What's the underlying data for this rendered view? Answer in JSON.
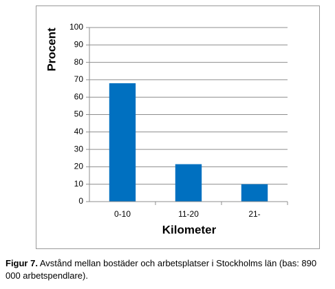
{
  "chart_data": {
    "type": "bar",
    "y_label": "Procent",
    "x_label": "Kilometer",
    "categories": [
      "0-10",
      "11-20",
      "21-"
    ],
    "values": [
      68,
      21.5,
      10
    ],
    "color": "#0070c0",
    "ylim": [
      0,
      100
    ],
    "yticks": [
      0,
      10,
      20,
      30,
      40,
      50,
      60,
      70,
      80,
      90,
      100
    ],
    "grid": true
  },
  "caption": {
    "label": "Figur 7.",
    "text": "Avstånd mellan bostäder och arbetsplatser i Stockholms län (bas: 890 000 arbetspendlare)."
  }
}
